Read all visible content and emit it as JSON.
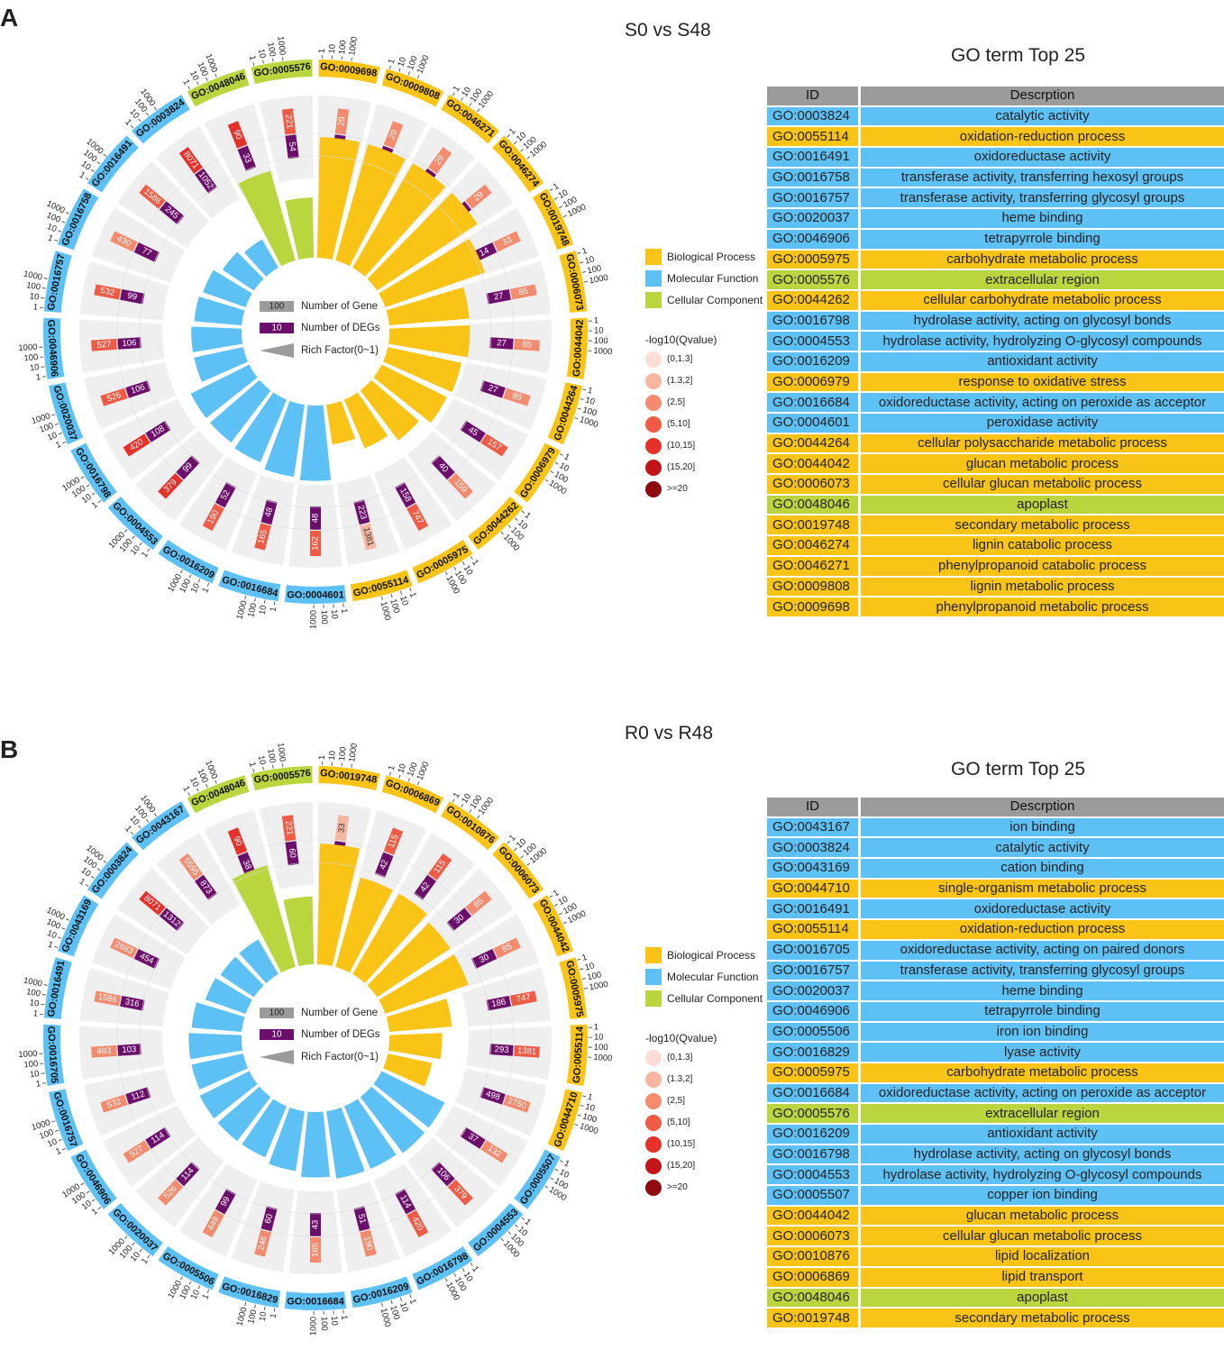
{
  "colors": {
    "bp": "#f9c416",
    "mf": "#5ec1f6",
    "cc": "#b9d63e",
    "deg": "#6b0f6b",
    "track": "#efefef",
    "header": "#9b9b9b"
  },
  "legend": {
    "categories": [
      {
        "key": "bp",
        "label": "Biological Process"
      },
      {
        "key": "mf",
        "label": "Molecular Function"
      },
      {
        "key": "cc",
        "label": "Cellular Component"
      }
    ],
    "qvalue_title": "-log10(Qvalue)",
    "qvalue_bins": [
      {
        "label": "(0,1.3]",
        "color": "#fcdcd4"
      },
      {
        "label": "(1.3,2]",
        "color": "#f8b5a0"
      },
      {
        "label": "(2,5]",
        "color": "#f48a6e"
      },
      {
        "label": "(5,10]",
        "color": "#ef5b44"
      },
      {
        "label": "(10,15]",
        "color": "#e6302a"
      },
      {
        "label": "(15,20]",
        "color": "#c31419"
      },
      {
        "label": ">=20",
        "color": "#8e0b10"
      }
    ],
    "center": {
      "gene_label": "Number of Gene",
      "gene_value": "100",
      "deg_label": "Number of DEGs",
      "deg_value": "10",
      "rich_label": "Rich Factor(0~1)"
    }
  },
  "scale_ticks": [
    "1",
    "10",
    "100",
    "1000"
  ],
  "table_headers": {
    "id": "ID",
    "desc": "Descrption"
  },
  "panels": [
    {
      "letter": "A",
      "title": "S0 vs S48",
      "go_title": "GO term Top 25",
      "chart_data": {
        "type": "circular-bar",
        "terms": [
          {
            "id": "GO:0009698",
            "cat": "bp",
            "gene": "29",
            "qbin": 2,
            "deg": "14",
            "rich": 0.48
          },
          {
            "id": "GO:0009808",
            "cat": "bp",
            "gene": "29",
            "qbin": 2,
            "deg": "14",
            "rich": 0.48
          },
          {
            "id": "GO:0046271",
            "cat": "bp",
            "gene": "29",
            "qbin": 2,
            "deg": "14",
            "rich": 0.48
          },
          {
            "id": "GO:0046274",
            "cat": "bp",
            "gene": "29",
            "qbin": 2,
            "deg": "14",
            "rich": 0.48
          },
          {
            "id": "GO:0019748",
            "cat": "bp",
            "gene": "33",
            "qbin": 2,
            "deg": "14",
            "rich": 0.42
          },
          {
            "id": "GO:0006073",
            "cat": "bp",
            "gene": "85",
            "qbin": 2,
            "deg": "27",
            "rich": 0.32
          },
          {
            "id": "GO:0044042",
            "cat": "bp",
            "gene": "85",
            "qbin": 2,
            "deg": "27",
            "rich": 0.32
          },
          {
            "id": "GO:0044264",
            "cat": "bp",
            "gene": "89",
            "qbin": 2,
            "deg": "27",
            "rich": 0.3
          },
          {
            "id": "GO:0006979",
            "cat": "bp",
            "gene": "157",
            "qbin": 3,
            "deg": "45",
            "rich": 0.29
          },
          {
            "id": "GO:0044262",
            "cat": "bp",
            "gene": "159",
            "qbin": 2,
            "deg": "40",
            "rich": 0.25
          },
          {
            "id": "GO:0005975",
            "cat": "bp",
            "gene": "747",
            "qbin": 3,
            "deg": "158",
            "rich": 0.21
          },
          {
            "id": "GO:0055114",
            "cat": "bp",
            "gene": "1381",
            "qbin": 1,
            "deg": "223",
            "rich": 0.16
          },
          {
            "id": "GO:0004601",
            "cat": "mf",
            "gene": "162",
            "qbin": 3,
            "deg": "48",
            "rich": 0.3
          },
          {
            "id": "GO:0016684",
            "cat": "mf",
            "gene": "165",
            "qbin": 3,
            "deg": "48",
            "rich": 0.29
          },
          {
            "id": "GO:0016209",
            "cat": "mf",
            "gene": "190",
            "qbin": 3,
            "deg": "52",
            "rich": 0.27
          },
          {
            "id": "GO:0004553",
            "cat": "mf",
            "gene": "379",
            "qbin": 4,
            "deg": "99",
            "rich": 0.26
          },
          {
            "id": "GO:0016798",
            "cat": "mf",
            "gene": "420",
            "qbin": 4,
            "deg": "108",
            "rich": 0.26
          },
          {
            "id": "GO:0020037",
            "cat": "mf",
            "gene": "526",
            "qbin": 3,
            "deg": "106",
            "rich": 0.2
          },
          {
            "id": "GO:0046906",
            "cat": "mf",
            "gene": "527",
            "qbin": 3,
            "deg": "106",
            "rich": 0.2
          },
          {
            "id": "GO:0016757",
            "cat": "mf",
            "gene": "532",
            "qbin": 3,
            "deg": "99",
            "rich": 0.19
          },
          {
            "id": "GO:0016758",
            "cat": "mf",
            "gene": "430",
            "qbin": 2,
            "deg": "77",
            "rich": 0.18
          },
          {
            "id": "GO:0016491",
            "cat": "mf",
            "gene": "1586",
            "qbin": 3,
            "deg": "245",
            "rich": 0.15
          },
          {
            "id": "GO:0003824",
            "cat": "mf",
            "gene": "8071",
            "qbin": 4,
            "deg": "1052",
            "rich": 0.13
          },
          {
            "id": "GO:0048046",
            "cat": "cc",
            "gene": "90",
            "qbin": 4,
            "deg": "33",
            "rich": 0.37
          },
          {
            "id": "GO:0005576",
            "cat": "cc",
            "gene": "221",
            "qbin": 3,
            "deg": "54",
            "rich": 0.24
          }
        ]
      },
      "table": [
        {
          "id": "GO:0003824",
          "desc": "catalytic activity",
          "cat": "mf"
        },
        {
          "id": "GO:0055114",
          "desc": "oxidation-reduction process",
          "cat": "bp"
        },
        {
          "id": "GO:0016491",
          "desc": "oxidoreductase activity",
          "cat": "mf"
        },
        {
          "id": "GO:0016758",
          "desc": "transferase activity, transferring hexosyl groups",
          "cat": "mf"
        },
        {
          "id": "GO:0016757",
          "desc": "transferase activity, transferring glycosyl groups",
          "cat": "mf"
        },
        {
          "id": "GO:0020037",
          "desc": "heme binding",
          "cat": "mf"
        },
        {
          "id": "GO:0046906",
          "desc": "tetrapyrrole binding",
          "cat": "mf"
        },
        {
          "id": "GO:0005975",
          "desc": "carbohydrate metabolic process",
          "cat": "bp"
        },
        {
          "id": "GO:0005576",
          "desc": "extracellular region",
          "cat": "cc"
        },
        {
          "id": "GO:0044262",
          "desc": "cellular carbohydrate metabolic process",
          "cat": "bp"
        },
        {
          "id": "GO:0016798",
          "desc": "hydrolase activity, acting on glycosyl bonds",
          "cat": "mf"
        },
        {
          "id": "GO:0004553",
          "desc": "hydrolase activity, hydrolyzing O-glycosyl compounds",
          "cat": "mf"
        },
        {
          "id": "GO:0016209",
          "desc": "antioxidant activity",
          "cat": "mf"
        },
        {
          "id": "GO:0006979",
          "desc": "response to oxidative stress",
          "cat": "bp"
        },
        {
          "id": "GO:0016684",
          "desc": "oxidoreductase activity, acting on peroxide as acceptor",
          "cat": "mf"
        },
        {
          "id": "GO:0004601",
          "desc": "peroxidase activity",
          "cat": "mf"
        },
        {
          "id": "GO:0044264",
          "desc": "cellular polysaccharide metabolic process",
          "cat": "bp"
        },
        {
          "id": "GO:0044042",
          "desc": "glucan metabolic process",
          "cat": "bp"
        },
        {
          "id": "GO:0006073",
          "desc": "cellular glucan metabolic process",
          "cat": "bp"
        },
        {
          "id": "GO:0048046",
          "desc": "apoplast",
          "cat": "cc"
        },
        {
          "id": "GO:0019748",
          "desc": "secondary metabolic process",
          "cat": "bp"
        },
        {
          "id": "GO:0046274",
          "desc": "lignin catabolic process",
          "cat": "bp"
        },
        {
          "id": "GO:0046271",
          "desc": "phenylpropanoid catabolic process",
          "cat": "bp"
        },
        {
          "id": "GO:0009808",
          "desc": "lignin metabolic process",
          "cat": "bp"
        },
        {
          "id": "GO:0009698",
          "desc": "phenylpropanoid metabolic process",
          "cat": "bp"
        }
      ]
    },
    {
      "letter": "B",
      "title": "R0 vs R48",
      "go_title": "GO term Top 25",
      "chart_data": {
        "type": "circular-bar",
        "terms": [
          {
            "id": "GO:0019748",
            "cat": "bp",
            "gene": "33",
            "qbin": 1,
            "deg": "16",
            "rich": 0.48
          },
          {
            "id": "GO:0006869",
            "cat": "bp",
            "gene": "115",
            "qbin": 3,
            "deg": "42",
            "rich": 0.37
          },
          {
            "id": "GO:0010876",
            "cat": "bp",
            "gene": "115",
            "qbin": 3,
            "deg": "42",
            "rich": 0.37
          },
          {
            "id": "GO:0006073",
            "cat": "bp",
            "gene": "85",
            "qbin": 2,
            "deg": "30",
            "rich": 0.35
          },
          {
            "id": "GO:0044042",
            "cat": "bp",
            "gene": "85",
            "qbin": 2,
            "deg": "30",
            "rich": 0.35
          },
          {
            "id": "GO:0005975",
            "cat": "bp",
            "gene": "747",
            "qbin": 3,
            "deg": "186",
            "rich": 0.25
          },
          {
            "id": "GO:0055114",
            "cat": "bp",
            "gene": "1381",
            "qbin": 3,
            "deg": "293",
            "rich": 0.21
          },
          {
            "id": "GO:0044710",
            "cat": "bp",
            "gene": "2750",
            "qbin": 2,
            "deg": "498",
            "rich": 0.18
          },
          {
            "id": "GO:0005507",
            "cat": "mf",
            "gene": "132",
            "qbin": 2,
            "deg": "37",
            "rich": 0.28
          },
          {
            "id": "GO:0004553",
            "cat": "mf",
            "gene": "379",
            "qbin": 3,
            "deg": "106",
            "rich": 0.28
          },
          {
            "id": "GO:0016798",
            "cat": "mf",
            "gene": "420",
            "qbin": 3,
            "deg": "114",
            "rich": 0.27
          },
          {
            "id": "GO:0016209",
            "cat": "mf",
            "gene": "190",
            "qbin": 2,
            "deg": "51",
            "rich": 0.27
          },
          {
            "id": "GO:0016684",
            "cat": "mf",
            "gene": "165",
            "qbin": 2,
            "deg": "43",
            "rich": 0.26
          },
          {
            "id": "GO:0016829",
            "cat": "mf",
            "gene": "246",
            "qbin": 2,
            "deg": "60",
            "rich": 0.24
          },
          {
            "id": "GO:0005506",
            "cat": "mf",
            "gene": "449",
            "qbin": 2,
            "deg": "99",
            "rich": 0.22
          },
          {
            "id": "GO:0020037",
            "cat": "mf",
            "gene": "526",
            "qbin": 2,
            "deg": "114",
            "rich": 0.22
          },
          {
            "id": "GO:0046906",
            "cat": "mf",
            "gene": "527",
            "qbin": 2,
            "deg": "114",
            "rich": 0.22
          },
          {
            "id": "GO:0016757",
            "cat": "mf",
            "gene": "532",
            "qbin": 2,
            "deg": "112",
            "rich": 0.21
          },
          {
            "id": "GO:0016705",
            "cat": "mf",
            "gene": "493",
            "qbin": 2,
            "deg": "103",
            "rich": 0.21
          },
          {
            "id": "GO:0016491",
            "cat": "mf",
            "gene": "1586",
            "qbin": 2,
            "deg": "316",
            "rich": 0.2
          },
          {
            "id": "GO:0043169",
            "cat": "mf",
            "gene": "2683",
            "qbin": 2,
            "deg": "454",
            "rich": 0.17
          },
          {
            "id": "GO:0003824",
            "cat": "mf",
            "gene": "8071",
            "qbin": 4,
            "deg": "1312",
            "rich": 0.16
          },
          {
            "id": "GO:0043167",
            "cat": "mf",
            "gene": "5595",
            "qbin": 2,
            "deg": "873",
            "rich": 0.16
          },
          {
            "id": "GO:0048046",
            "cat": "cc",
            "gene": "90",
            "qbin": 4,
            "deg": "38",
            "rich": 0.42
          },
          {
            "id": "GO:0005576",
            "cat": "cc",
            "gene": "221",
            "qbin": 3,
            "deg": "60",
            "rich": 0.27
          }
        ]
      },
      "table": [
        {
          "id": "GO:0043167",
          "desc": "ion binding",
          "cat": "mf"
        },
        {
          "id": "GO:0003824",
          "desc": "catalytic activity",
          "cat": "mf"
        },
        {
          "id": "GO:0043169",
          "desc": "cation binding",
          "cat": "mf"
        },
        {
          "id": "GO:0044710",
          "desc": "single-organism metabolic process",
          "cat": "bp"
        },
        {
          "id": "GO:0016491",
          "desc": "oxidoreductase activity",
          "cat": "mf"
        },
        {
          "id": "GO:0055114",
          "desc": "oxidation-reduction process",
          "cat": "bp"
        },
        {
          "id": "GO:0016705",
          "desc": "oxidoreductase activity, acting on paired donors",
          "cat": "mf"
        },
        {
          "id": "GO:0016757",
          "desc": "transferase activity, transferring glycosyl groups",
          "cat": "mf"
        },
        {
          "id": "GO:0020037",
          "desc": "heme binding",
          "cat": "mf"
        },
        {
          "id": "GO:0046906",
          "desc": "tetrapyrrole binding",
          "cat": "mf"
        },
        {
          "id": "GO:0005506",
          "desc": "iron ion binding",
          "cat": "mf"
        },
        {
          "id": "GO:0016829",
          "desc": "lyase activity",
          "cat": "mf"
        },
        {
          "id": "GO:0005975",
          "desc": "carbohydrate metabolic process",
          "cat": "bp"
        },
        {
          "id": "GO:0016684",
          "desc": "oxidoreductase activity, acting on peroxide as acceptor",
          "cat": "mf"
        },
        {
          "id": "GO:0005576",
          "desc": "extracellular region",
          "cat": "cc"
        },
        {
          "id": "GO:0016209",
          "desc": "antioxidant activity",
          "cat": "mf"
        },
        {
          "id": "GO:0016798",
          "desc": "hydrolase activity, acting on glycosyl bonds",
          "cat": "mf"
        },
        {
          "id": "GO:0004553",
          "desc": "hydrolase activity, hydrolyzing O-glycosyl compounds",
          "cat": "mf"
        },
        {
          "id": "GO:0005507",
          "desc": "copper ion binding",
          "cat": "mf"
        },
        {
          "id": "GO:0044042",
          "desc": "glucan metabolic process",
          "cat": "bp"
        },
        {
          "id": "GO:0006073",
          "desc": "cellular glucan metabolic process",
          "cat": "bp"
        },
        {
          "id": "GO:0010876",
          "desc": "lipid localization",
          "cat": "bp"
        },
        {
          "id": "GO:0006869",
          "desc": "lipid transport",
          "cat": "bp"
        },
        {
          "id": "GO:0048046",
          "desc": "apoplast",
          "cat": "cc"
        },
        {
          "id": "GO:0019748",
          "desc": "secondary metabolic process",
          "cat": "bp"
        }
      ]
    }
  ]
}
